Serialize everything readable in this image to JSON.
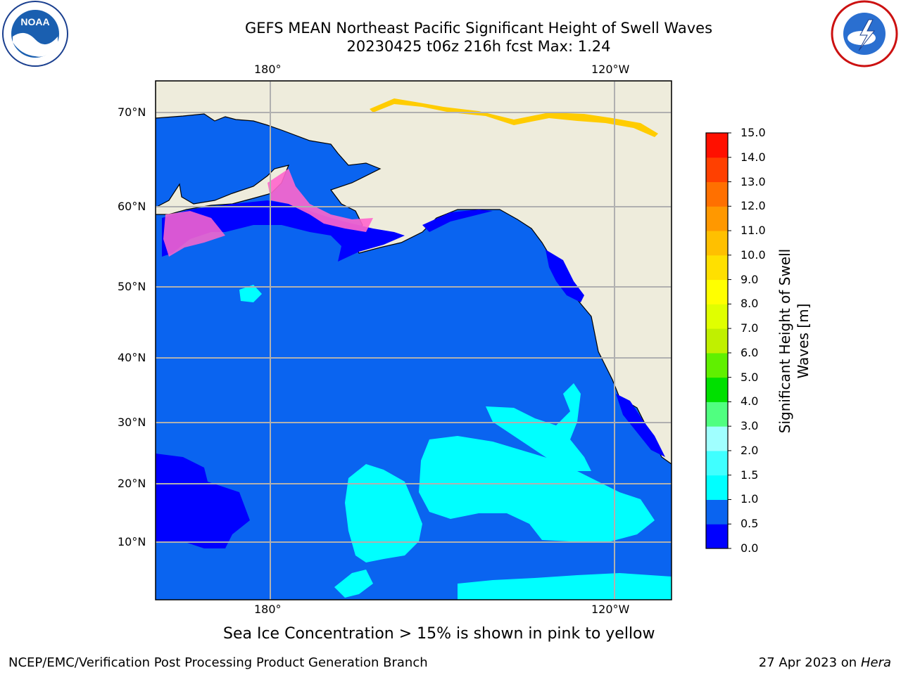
{
  "header": {
    "title_line1": "GEFS MEAN Northeast Pacific Significant Height of Swell Waves",
    "title_line2": "20230425 t06z 216h fcst   Max: 1.24"
  },
  "logos": {
    "left": {
      "text": "NOAA",
      "icon": "noaa-logo"
    },
    "right": {
      "text": "NATIONAL WEATHER SERVICE",
      "icon": "nws-logo"
    }
  },
  "axes": {
    "lon_top": [
      "180°",
      "120°W"
    ],
    "lon_bottom": [
      "180°",
      "120°W"
    ],
    "lat_left": [
      "70°N",
      "60°N",
      "50°N",
      "40°N",
      "30°N",
      "20°N",
      "10°N"
    ]
  },
  "colorbar": {
    "title_line1": "Significant Height of Swell",
    "title_line2": "Waves [m]",
    "ticks": [
      "15.0",
      "14.0",
      "13.0",
      "12.0",
      "11.0",
      "10.0",
      "9.0",
      "8.0",
      "7.0",
      "6.0",
      "5.0",
      "4.0",
      "3.0",
      "2.0",
      "1.5",
      "1.0",
      "0.5",
      "0.0"
    ],
    "colors_bottom_to_top": [
      "#0000ff",
      "#0a64f0",
      "#00ffff",
      "#40ffff",
      "#a0ffff",
      "#50ff80",
      "#00e000",
      "#60f000",
      "#c0f000",
      "#e0ff00",
      "#ffff00",
      "#ffe000",
      "#ffc000",
      "#ff9800",
      "#ff7000",
      "#ff4000",
      "#ff1000"
    ]
  },
  "map_colors": {
    "ocean": "#0a64f0",
    "land": "#eeecdc",
    "swell_high": "#00ffff",
    "swell_low": "#0000ff",
    "ice": "#ff66cc"
  },
  "note": "Sea Ice Concentration > 15% is shown in pink to yellow",
  "footer": {
    "left": "NCEP/EMC/Verification Post Processing Product Generation Branch",
    "right_date": "27 Apr 2023 on ",
    "right_host": "Hera"
  }
}
